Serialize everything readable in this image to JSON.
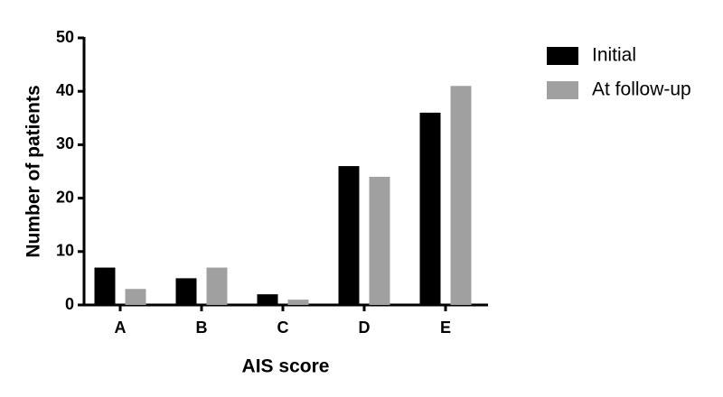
{
  "chart_data": {
    "type": "bar",
    "xlabel": "AIS score",
    "ylabel": "Number of patients",
    "categories": [
      "A",
      "B",
      "C",
      "D",
      "E"
    ],
    "series": [
      {
        "name": "Initial",
        "color": "#000000",
        "values": [
          7,
          5,
          2,
          26,
          36
        ]
      },
      {
        "name": "At follow-up",
        "color": "#a0a0a0",
        "values": [
          3,
          7,
          1,
          24,
          41
        ]
      }
    ],
    "ylim": [
      0,
      50
    ],
    "yticks": [
      0,
      10,
      20,
      30,
      40,
      50
    ],
    "grid": false,
    "legend": "right"
  }
}
